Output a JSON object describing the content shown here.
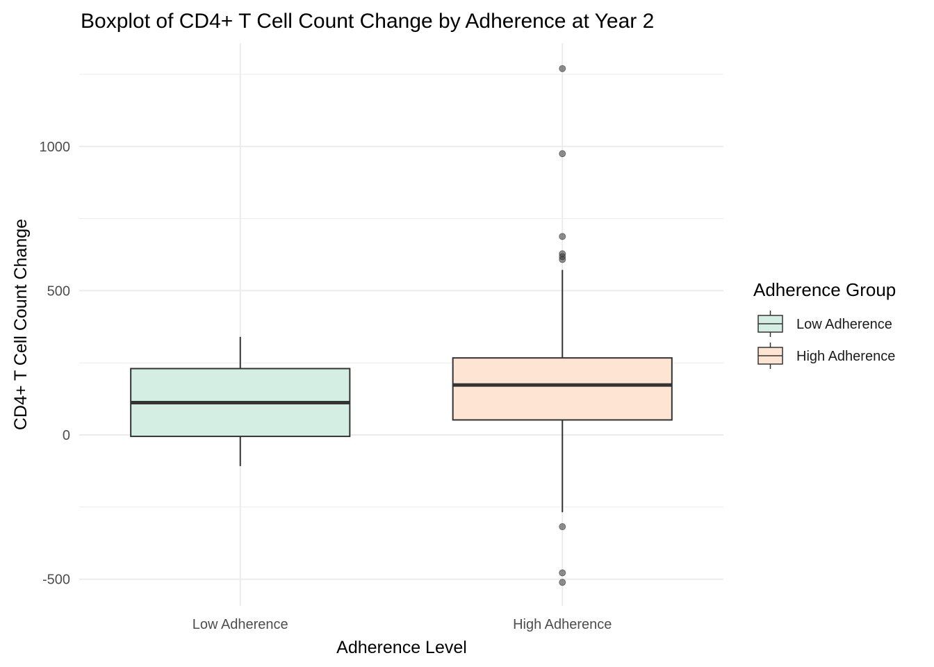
{
  "chart_data": {
    "type": "boxplot",
    "title": "Boxplot of CD4+ T Cell Count Change by Adherence at Year 2",
    "xlabel": "Adherence Level",
    "ylabel": "CD4+ T Cell Count Change",
    "ylim": [
      -590,
      1305
    ],
    "y_ticks": [
      -500,
      0,
      500,
      1000
    ],
    "y_tick_labels": [
      "-500",
      "0",
      "500",
      "1000"
    ],
    "y_minor_ticks": [
      -250,
      250,
      750,
      1000,
      1250
    ],
    "grid": true,
    "categories": [
      "Low Adherence",
      "High Adherence"
    ],
    "boxes": [
      {
        "category": "Low Adherence",
        "color": "#D5EEE3",
        "whisker_low": -108,
        "q1": -5,
        "median": 112,
        "q3": 230,
        "whisker_high": 340,
        "outliers": []
      },
      {
        "category": "High Adherence",
        "color": "#FDE4D3",
        "whisker_low": -268,
        "q1": 52,
        "median": 173,
        "q3": 267,
        "whisker_high": 572,
        "outliers": [
          1270,
          975,
          688,
          628,
          618,
          608,
          -318,
          -478,
          -511
        ]
      }
    ],
    "legend": {
      "title": "Adherence Group",
      "position": "right",
      "entries": [
        "Low Adherence",
        "High Adherence"
      ]
    },
    "colors": {
      "box_stroke": "#333333",
      "median": "#333333",
      "outlier": "#333333",
      "grid": "#EBEBEB"
    }
  }
}
